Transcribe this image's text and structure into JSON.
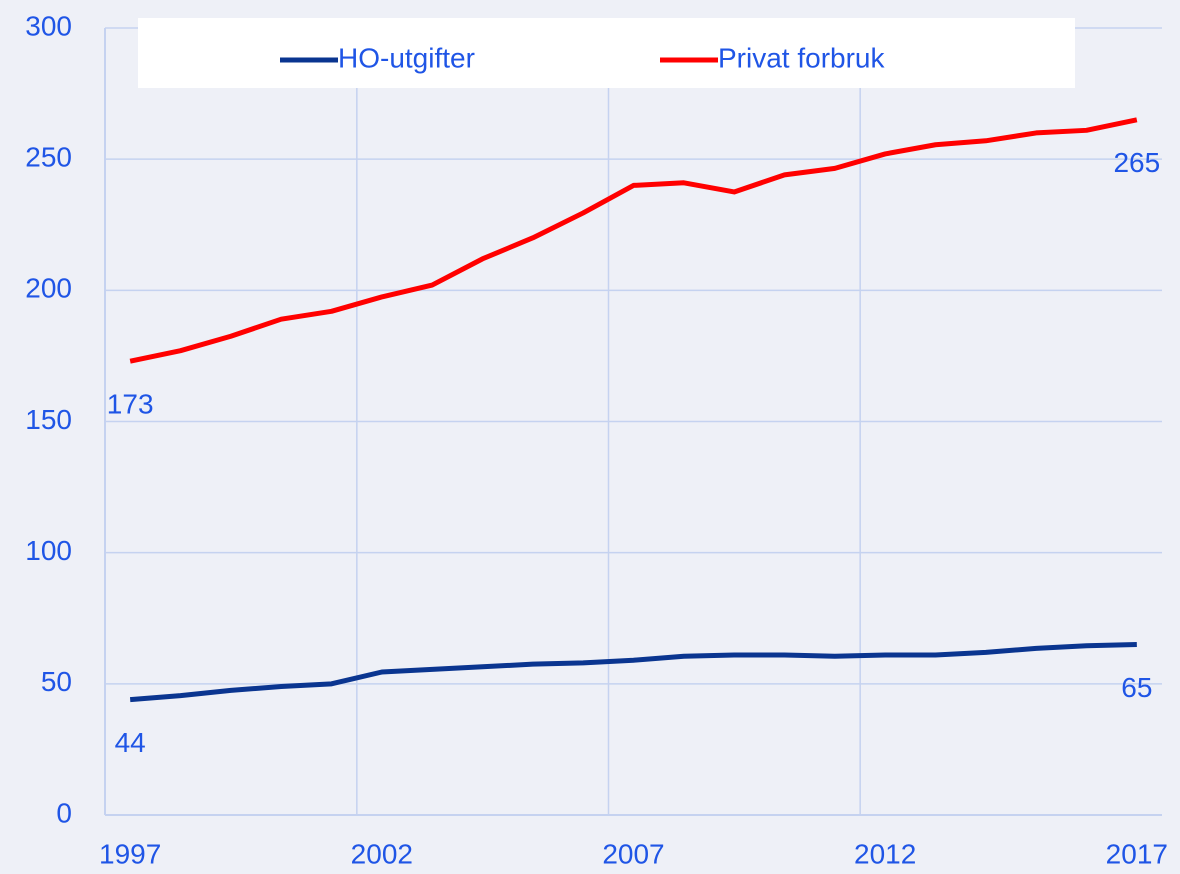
{
  "chart_data": {
    "type": "line",
    "x": [
      1997,
      1998,
      1999,
      2000,
      2001,
      2002,
      2003,
      2004,
      2005,
      2006,
      2007,
      2008,
      2009,
      2010,
      2011,
      2012,
      2013,
      2014,
      2015,
      2016,
      2017
    ],
    "series": [
      {
        "name": "HO-utgifter",
        "color": "#0a3590",
        "values": [
          44,
          45.5,
          47.5,
          49,
          50,
          54.5,
          55.5,
          56.5,
          57.5,
          58,
          59,
          60.5,
          61,
          61,
          60.5,
          61,
          61,
          62,
          63.5,
          64.5,
          65
        ]
      },
      {
        "name": "Privat forbruk",
        "color": "#ff0000",
        "values": [
          173,
          177,
          182.5,
          189,
          192,
          197.5,
          202,
          212,
          220,
          229.5,
          240,
          241,
          237.5,
          244,
          246.5,
          252,
          255.5,
          257,
          260,
          261,
          265
        ]
      }
    ],
    "xlim": [
      1996.5,
      2017.5
    ],
    "xticks": [
      1997,
      2002,
      2007,
      2012,
      2017
    ],
    "ylim": [
      0,
      300
    ],
    "yticks": [
      0,
      50,
      100,
      150,
      200,
      250,
      300
    ],
    "grid": true,
    "legend": "top"
  }
}
